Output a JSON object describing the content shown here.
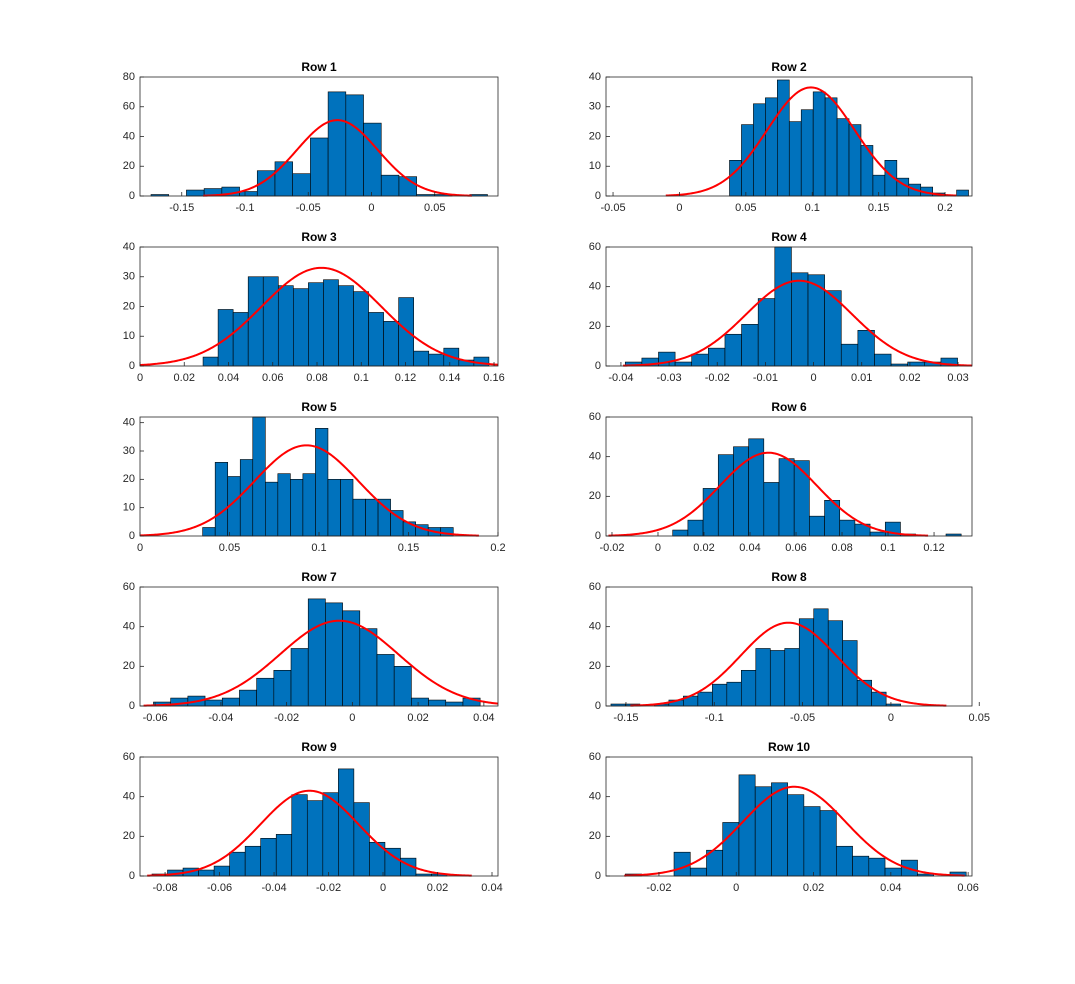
{
  "chart_data": [
    {
      "type": "histogram",
      "title": "Row 1",
      "color": "#0072bd",
      "edgecolor": "#000000",
      "bins": [
        -0.1743,
        -0.1603,
        -0.1463,
        -0.1323,
        -0.1183,
        -0.1043,
        -0.0903,
        -0.0763,
        -0.0623,
        -0.0483,
        -0.0343,
        -0.0203,
        -0.0063,
        0.0077,
        0.0217,
        0.0357,
        0.0497,
        0.0637,
        0.0777,
        0.0917
      ],
      "values": [
        1,
        0,
        4,
        5,
        6,
        3,
        17,
        23,
        15,
        39,
        70,
        68,
        49,
        14,
        13,
        1,
        1,
        0,
        1
      ],
      "fit": {
        "mean": -0.027,
        "std": 0.032,
        "peak": 51,
        "color": "#ff0000"
      },
      "xlim": [
        -0.183,
        0.1
      ],
      "xticks": [
        -0.15,
        -0.1,
        -0.05,
        0,
        0.05
      ],
      "ylim": [
        0,
        80
      ],
      "yticks": [
        0,
        20,
        40,
        60,
        80
      ]
    },
    {
      "type": "histogram",
      "title": "Row 2",
      "color": "#0072bd",
      "edgecolor": "#000000",
      "bins": [
        0.0377,
        0.0467,
        0.0557,
        0.0647,
        0.0737,
        0.0827,
        0.0917,
        0.1007,
        0.1097,
        0.1187,
        0.1277,
        0.1367,
        0.1457,
        0.1547,
        0.1637,
        0.1727,
        0.1817,
        0.1907,
        0.1997,
        0.2087,
        0.2177
      ],
      "values": [
        12,
        24,
        31,
        33,
        39,
        25,
        29,
        35,
        33,
        26,
        24,
        17,
        7,
        12,
        6,
        4,
        3,
        1,
        0,
        2
      ],
      "fit": {
        "mean": 0.099,
        "std": 0.033,
        "peak": 36.5,
        "color": "#ff0000"
      },
      "xlim": [
        -0.0553,
        0.2203
      ],
      "xticks": [
        -0.05,
        0,
        0.05,
        0.1,
        0.15,
        0.2
      ],
      "ylim": [
        0,
        40
      ],
      "yticks": [
        0,
        10,
        20,
        30,
        40
      ]
    },
    {
      "type": "histogram",
      "title": "Row 3",
      "color": "#0072bd",
      "edgecolor": "#000000",
      "bins": [
        0.0285,
        0.0353,
        0.0421,
        0.0489,
        0.0557,
        0.0625,
        0.0693,
        0.0761,
        0.0829,
        0.0897,
        0.0965,
        0.1033,
        0.1101,
        0.1169,
        0.1237,
        0.1305,
        0.1373,
        0.1441,
        0.1509,
        0.1577
      ],
      "values": [
        3,
        19,
        18,
        30,
        30,
        27,
        26,
        28,
        29,
        27,
        25,
        18,
        15,
        23,
        5,
        4,
        6,
        2,
        3
      ],
      "fit": {
        "mean": 0.082,
        "std": 0.027,
        "peak": 33,
        "color": "#ff0000"
      },
      "xlim": [
        0,
        0.1618
      ],
      "xticks": [
        0,
        0.02,
        0.04,
        0.06,
        0.08,
        0.1,
        0.12,
        0.14,
        0.16
      ],
      "ylim": [
        0,
        40
      ],
      "yticks": [
        0,
        10,
        20,
        30,
        40
      ]
    },
    {
      "type": "histogram",
      "title": "Row 4",
      "color": "#0072bd",
      "edgecolor": "#000000",
      "bins": [
        -0.0391,
        -0.03565,
        -0.0322,
        -0.02875,
        -0.0253,
        -0.02185,
        -0.0184,
        -0.01495,
        -0.0115,
        -0.00805,
        -0.0046,
        -0.00115,
        0.0023,
        0.00575,
        0.0092,
        0.01265,
        0.0161,
        0.01955,
        0.023,
        0.02645,
        0.0299
      ],
      "values": [
        2,
        4,
        7,
        2,
        6,
        9,
        16,
        21,
        34,
        60,
        47,
        46,
        38,
        11,
        18,
        6,
        1,
        2,
        2,
        4
      ],
      "fit": {
        "mean": -0.003,
        "std": 0.011,
        "peak": 43,
        "color": "#ff0000"
      },
      "xlim": [
        -0.0431,
        0.0329
      ],
      "xticks": [
        -0.04,
        -0.03,
        -0.02,
        -0.01,
        0,
        0.01,
        0.02,
        0.03
      ],
      "ylim": [
        0,
        60
      ],
      "yticks": [
        0,
        20,
        40,
        60
      ]
    },
    {
      "type": "histogram",
      "title": "Row 5",
      "color": "#0072bd",
      "edgecolor": "#000000",
      "bins": [
        0.035,
        0.042,
        0.049,
        0.056,
        0.063,
        0.07,
        0.077,
        0.084,
        0.091,
        0.098,
        0.105,
        0.112,
        0.119,
        0.126,
        0.133,
        0.14,
        0.147,
        0.154,
        0.161,
        0.168,
        0.175
      ],
      "values": [
        3,
        26,
        21,
        27,
        42,
        19,
        22,
        20,
        22,
        38,
        20,
        20,
        13,
        13,
        13,
        9,
        5,
        4,
        3,
        3
      ],
      "fit": {
        "mean": 0.093,
        "std": 0.029,
        "peak": 32,
        "color": "#ff0000"
      },
      "xlim": [
        0,
        0.2
      ],
      "xticks": [
        0,
        0.05,
        0.1,
        0.15,
        0.2
      ],
      "ylim": [
        0,
        42
      ],
      "yticks": [
        0,
        10,
        20,
        30,
        40
      ]
    },
    {
      "type": "histogram",
      "title": "Row 6",
      "color": "#0072bd",
      "edgecolor": "#000000",
      "bins": [
        0.0064,
        0.013,
        0.0196,
        0.0262,
        0.0328,
        0.0394,
        0.046,
        0.0526,
        0.0592,
        0.0658,
        0.0724,
        0.079,
        0.0856,
        0.0922,
        0.0988,
        0.1054,
        0.112,
        0.1186,
        0.1252,
        0.1318
      ],
      "values": [
        3,
        8,
        24,
        41,
        45,
        49,
        27,
        39,
        38,
        10,
        18,
        8,
        6,
        2,
        7,
        1,
        0,
        0,
        1
      ],
      "fit": {
        "mean": 0.048,
        "std": 0.021,
        "peak": 42,
        "color": "#ff0000"
      },
      "xlim": [
        -0.0226,
        0.1365
      ],
      "xticks": [
        -0.02,
        0,
        0.02,
        0.04,
        0.06,
        0.08,
        0.1,
        0.12
      ],
      "ylim": [
        0,
        60
      ],
      "yticks": [
        0,
        20,
        40,
        60
      ]
    },
    {
      "type": "histogram",
      "title": "Row 7",
      "color": "#0072bd",
      "edgecolor": "#000000",
      "bins": [
        -0.0605,
        -0.05527,
        -0.05004,
        -0.04481,
        -0.03958,
        -0.03435,
        -0.02912,
        -0.02389,
        -0.01866,
        -0.01343,
        -0.0082,
        -0.00297,
        0.00226,
        0.00749,
        0.01272,
        0.01795,
        0.02318,
        0.02841,
        0.03364,
        0.03887
      ],
      "values": [
        2,
        4,
        5,
        3,
        4,
        8,
        14,
        18,
        29,
        54,
        52,
        48,
        39,
        26,
        20,
        4,
        3,
        2,
        4
      ],
      "fit": {
        "mean": -0.004,
        "std": 0.018,
        "peak": 43,
        "color": "#ff0000"
      },
      "xlim": [
        -0.0646,
        0.0443
      ],
      "xticks": [
        -0.06,
        -0.04,
        -0.02,
        0,
        0.02,
        0.04
      ],
      "ylim": [
        0,
        60
      ],
      "yticks": [
        0,
        20,
        40,
        60
      ]
    },
    {
      "type": "histogram",
      "title": "Row 8",
      "color": "#0072bd",
      "edgecolor": "#000000",
      "bins": [
        -0.1585,
        -0.1503,
        -0.1421,
        -0.1339,
        -0.1257,
        -0.1175,
        -0.1093,
        -0.1011,
        -0.0929,
        -0.0847,
        -0.0765,
        -0.0683,
        -0.0601,
        -0.0519,
        -0.0437,
        -0.0355,
        -0.0273,
        -0.0191,
        -0.0109,
        -0.0027,
        0.0055
      ],
      "values": [
        1,
        1,
        0,
        1,
        3,
        5,
        7,
        11,
        12,
        18,
        29,
        28,
        29,
        44,
        49,
        43,
        33,
        13,
        7,
        1
      ],
      "fit": {
        "mean": -0.058,
        "std": 0.027,
        "peak": 42,
        "color": "#ff0000"
      },
      "xlim": [
        -0.1613,
        0.0459
      ],
      "xticks": [
        -0.15,
        -0.1,
        -0.05,
        0,
        0.05
      ],
      "ylim": [
        0,
        60
      ],
      "yticks": [
        0,
        20,
        40,
        60
      ]
    },
    {
      "type": "histogram",
      "title": "Row 9",
      "color": "#0072bd",
      "edgecolor": "#000000",
      "bins": [
        -0.0848,
        -0.0791,
        -0.0734,
        -0.0677,
        -0.062,
        -0.0563,
        -0.0506,
        -0.0449,
        -0.0392,
        -0.0335,
        -0.0278,
        -0.0221,
        -0.0164,
        -0.0107,
        -0.005,
        0.0007,
        0.0064,
        0.0121,
        0.0178,
        0.0235
      ],
      "values": [
        1,
        3,
        4,
        3,
        5,
        12,
        15,
        19,
        21,
        41,
        38,
        42,
        54,
        37,
        17,
        14,
        9,
        1,
        1
      ],
      "fit": {
        "mean": -0.027,
        "std": 0.018,
        "peak": 43,
        "color": "#ff0000"
      },
      "xlim": [
        -0.0892,
        0.0422
      ],
      "xticks": [
        -0.08,
        -0.06,
        -0.04,
        -0.02,
        0,
        0.02,
        0.04
      ],
      "ylim": [
        0,
        60
      ],
      "yticks": [
        0,
        20,
        40,
        60
      ]
    },
    {
      "type": "histogram",
      "title": "Row 10",
      "color": "#0072bd",
      "edgecolor": "#000000",
      "bins": [
        -0.0287,
        -0.0245,
        -0.0203,
        -0.0161,
        -0.0119,
        -0.0077,
        -0.0035,
        0.0007,
        0.0049,
        0.0091,
        0.0133,
        0.0175,
        0.0217,
        0.0259,
        0.0301,
        0.0343,
        0.0385,
        0.0427,
        0.0469,
        0.0511,
        0.0553,
        0.0595
      ],
      "values": [
        1,
        0,
        0,
        12,
        4,
        13,
        27,
        51,
        45,
        47,
        41,
        35,
        33,
        15,
        10,
        9,
        4,
        8,
        1,
        0,
        2
      ],
      "fit": {
        "mean": 0.015,
        "std": 0.0133,
        "peak": 45,
        "color": "#ff0000"
      },
      "xlim": [
        -0.0337,
        0.061
      ],
      "xticks": [
        -0.02,
        0,
        0.02,
        0.04,
        0.06
      ],
      "ylim": [
        0,
        60
      ],
      "yticks": [
        0,
        20,
        40,
        60
      ]
    }
  ]
}
